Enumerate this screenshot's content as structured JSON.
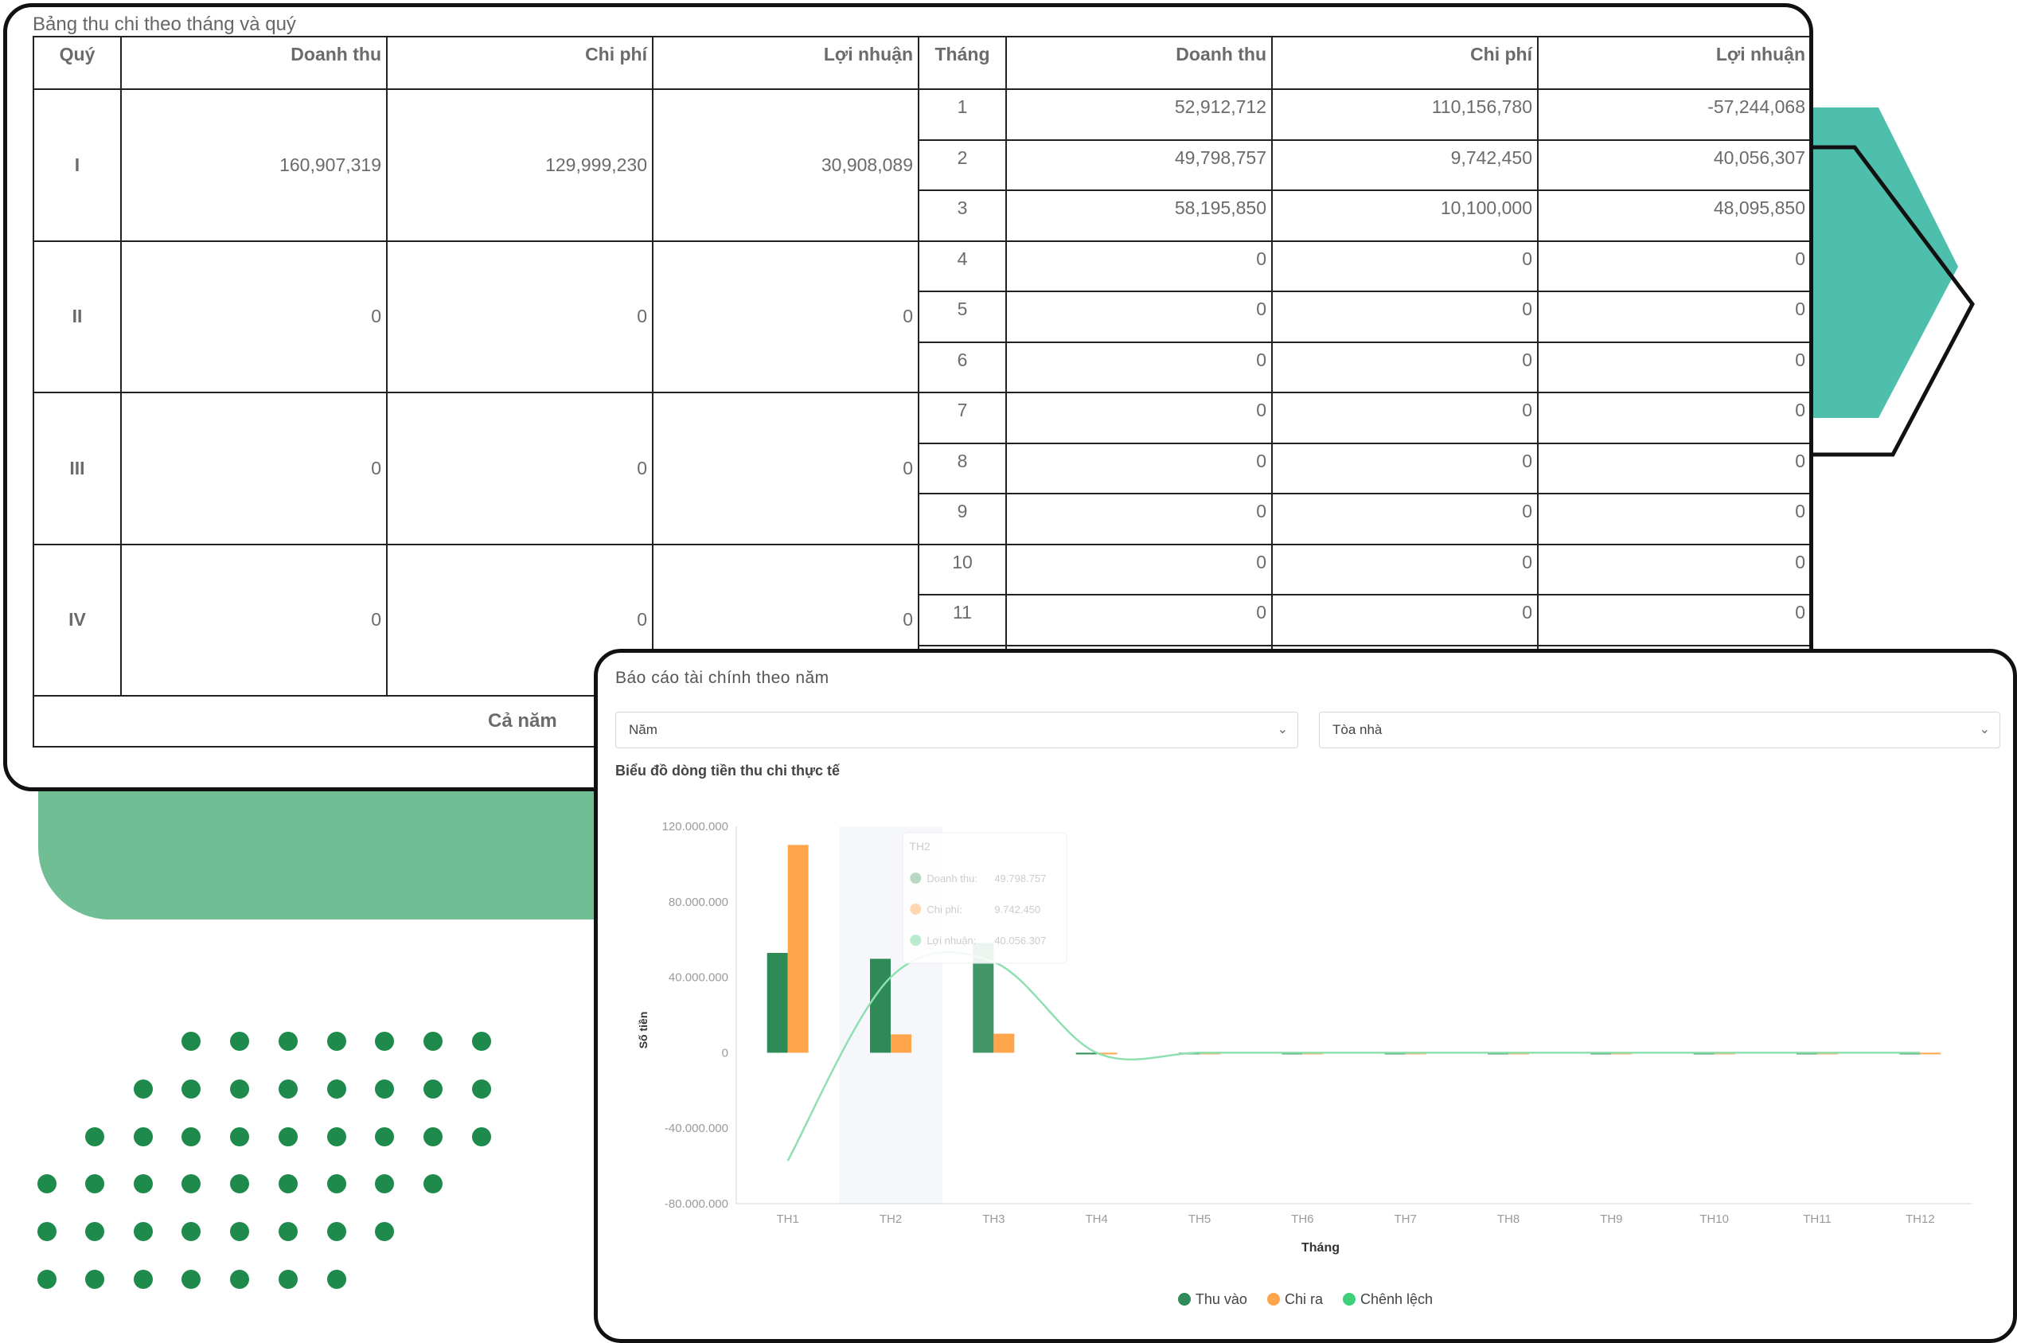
{
  "table": {
    "title": "Bảng thu chi theo tháng và quý",
    "headers": {
      "quarter": "Quý",
      "q_revenue": "Doanh thu",
      "q_cost": "Chi phí",
      "q_profit": "Lợi nhuận",
      "month": "Tháng",
      "m_revenue": "Doanh thu",
      "m_cost": "Chi phí",
      "m_profit": "Lợi nhuận"
    },
    "quarters": [
      {
        "name": "I",
        "revenue": "160,907,319",
        "cost": "129,999,230",
        "profit": "30,908,089"
      },
      {
        "name": "II",
        "revenue": "0",
        "cost": "0",
        "profit": "0"
      },
      {
        "name": "III",
        "revenue": "0",
        "cost": "0",
        "profit": "0"
      },
      {
        "name": "IV",
        "revenue": "0",
        "cost": "0",
        "profit": "0"
      }
    ],
    "months": [
      {
        "month": "1",
        "revenue": "52,912,712",
        "cost": "110,156,780",
        "profit": "-57,244,068"
      },
      {
        "month": "2",
        "revenue": "49,798,757",
        "cost": "9,742,450",
        "profit": "40,056,307"
      },
      {
        "month": "3",
        "revenue": "58,195,850",
        "cost": "10,100,000",
        "profit": "48,095,850"
      },
      {
        "month": "4",
        "revenue": "0",
        "cost": "0",
        "profit": "0"
      },
      {
        "month": "5",
        "revenue": "0",
        "cost": "0",
        "profit": "0"
      },
      {
        "month": "6",
        "revenue": "0",
        "cost": "0",
        "profit": "0"
      },
      {
        "month": "7",
        "revenue": "0",
        "cost": "0",
        "profit": "0"
      },
      {
        "month": "8",
        "revenue": "0",
        "cost": "0",
        "profit": "0"
      },
      {
        "month": "9",
        "revenue": "0",
        "cost": "0",
        "profit": "0"
      },
      {
        "month": "10",
        "revenue": "0",
        "cost": "0",
        "profit": "0"
      },
      {
        "month": "11",
        "revenue": "0",
        "cost": "0",
        "profit": "0"
      }
    ],
    "year_label": "Cả năm"
  },
  "report": {
    "title": "Báo cáo tài chính theo năm",
    "year_select": "Năm",
    "building_select": "Tòa nhà",
    "chart_subtitle": "Biểu đồ dòng tiền thu chi thực tế"
  },
  "colors": {
    "revenue": "#2e8b57",
    "cost": "#ffa64d",
    "diff": "#3ecf7a",
    "accent_teal": "#4fbfad",
    "accent_green": "#70be94",
    "dots": "#1e8a4c"
  },
  "chart_data": {
    "type": "bar",
    "xlabel": "Tháng",
    "ylabel": "Số tiền",
    "categories": [
      "TH1",
      "TH2",
      "TH3",
      "TH4",
      "TH5",
      "TH6",
      "TH7",
      "TH8",
      "TH9",
      "TH10",
      "TH11",
      "TH12"
    ],
    "yticks": [
      "120.000.000",
      "80.000.000",
      "40.000.000",
      "0",
      "-40.000.000",
      "-80.000.000"
    ],
    "ylim": [
      -80000000,
      120000000
    ],
    "series": [
      {
        "name": "Thu vào",
        "kind": "bar",
        "values": [
          52912712,
          49798757,
          58195850,
          0,
          0,
          0,
          0,
          0,
          0,
          0,
          0,
          0
        ]
      },
      {
        "name": "Chi ra",
        "kind": "bar",
        "values": [
          110156780,
          9742450,
          10100000,
          0,
          0,
          0,
          0,
          0,
          0,
          0,
          0,
          0
        ]
      },
      {
        "name": "Chênh lệch",
        "kind": "line",
        "values": [
          -57244068,
          40056307,
          48095850,
          0,
          0,
          0,
          0,
          0,
          0,
          0,
          0,
          0
        ]
      }
    ],
    "tooltip": {
      "title": "TH2",
      "rows": [
        {
          "label": "Doanh thu:",
          "value": "49.798.757"
        },
        {
          "label": "Chi phí:",
          "value": "9.742.450"
        },
        {
          "label": "Lợi nhuận:",
          "value": "40.056.307"
        }
      ]
    },
    "grid": false,
    "legend": "bottom"
  }
}
